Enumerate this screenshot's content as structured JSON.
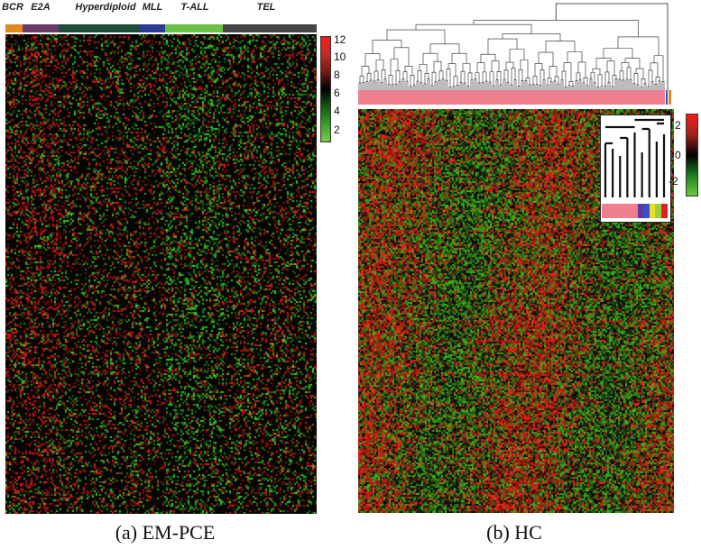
{
  "panel_a": {
    "groups": [
      {
        "key": "bcr",
        "label": "BCR",
        "color": "#e08a1e"
      },
      {
        "key": "e2a",
        "label": "E2A",
        "color": "#6b3b6b"
      },
      {
        "key": "hyperdiploid",
        "label": "Hyperdiploid",
        "color": "#1e4d3a"
      },
      {
        "key": "mll",
        "label": "MLL",
        "color": "#2a3d8f"
      },
      {
        "key": "tall",
        "label": "T-ALL",
        "color": "#6cc043"
      },
      {
        "key": "tel",
        "label": "TEL",
        "color": "#444444"
      }
    ],
    "colorbar": {
      "ticks": [
        "12",
        "10",
        "8",
        "6",
        "4",
        "2"
      ],
      "colors": [
        "#ff1a1a",
        "#c0302a",
        "#7a1a14",
        "#000000",
        "#1a5a14",
        "#3aa030",
        "#7ed04a"
      ]
    },
    "caption": "(a) EM-PCE"
  },
  "panel_b": {
    "label_bar_color": "#ef7f8e",
    "inset_bar_colors": [
      "#ef7f8e",
      "#ef7f8e",
      "#ef7f8e",
      "#ef7f8e",
      "#5a3aa0",
      "#3a4fd0",
      "#e8e020",
      "#9ad040",
      "#e02020"
    ],
    "colorbar": {
      "ticks": [
        "2",
        "0",
        "-2"
      ],
      "colors": [
        "#ff1a1a",
        "#a0241c",
        "#000000",
        "#208020",
        "#6ed040"
      ]
    },
    "caption": "(b) HC"
  }
}
